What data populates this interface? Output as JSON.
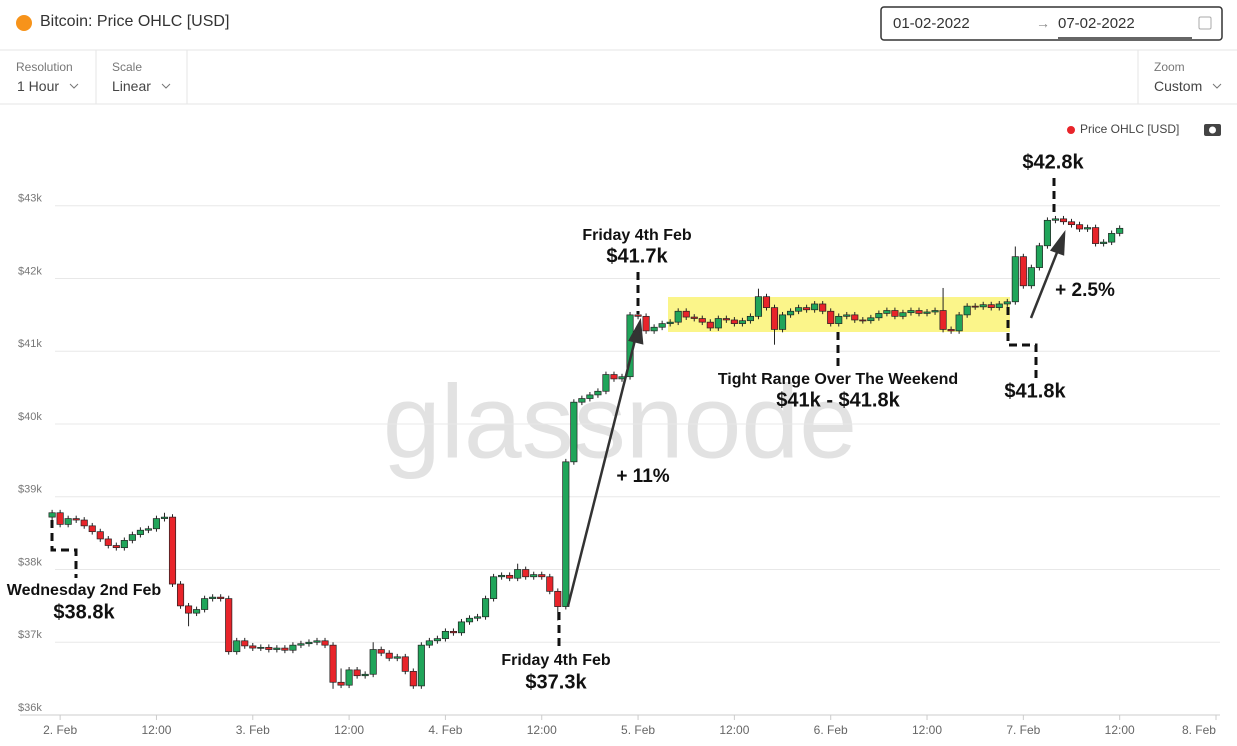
{
  "header": {
    "title": "Bitcoin: Price OHLC [USD]",
    "date_from": "01-02-2022",
    "date_separator": "→",
    "date_to": "07-02-2022"
  },
  "toolbar": {
    "resolution_label": "Resolution",
    "resolution_value": "1 Hour",
    "scale_label": "Scale",
    "scale_value": "Linear",
    "zoom_label": "Zoom",
    "zoom_value": "Custom"
  },
  "chart_data": {
    "type": "candlestick",
    "watermark": "glassnode",
    "up_color": "#20a55a",
    "down_color": "#e8242a",
    "grid": true,
    "xlim": [
      -4,
      145.5
    ],
    "xticks": [
      {
        "value": 1,
        "label": "2. Feb"
      },
      {
        "value": 13,
        "label": "12:00"
      },
      {
        "value": 25,
        "label": "3. Feb"
      },
      {
        "value": 37,
        "label": "12:00"
      },
      {
        "value": 49,
        "label": "4. Feb"
      },
      {
        "value": 61,
        "label": "12:00"
      },
      {
        "value": 73,
        "label": "5. Feb"
      },
      {
        "value": 85,
        "label": "12:00"
      },
      {
        "value": 97,
        "label": "6. Feb"
      },
      {
        "value": 109,
        "label": "12:00"
      },
      {
        "value": 121,
        "label": "7. Feb"
      },
      {
        "value": 133,
        "label": "12:00"
      },
      {
        "value": 145,
        "label": "8. Feb"
      }
    ],
    "ylim": [
      36000,
      44000
    ],
    "yticks": [
      {
        "value": 36000,
        "label": "$36k"
      },
      {
        "value": 37000,
        "label": "$37k"
      },
      {
        "value": 38000,
        "label": "$38k"
      },
      {
        "value": 39000,
        "label": "$39k"
      },
      {
        "value": 40000,
        "label": "$40k"
      },
      {
        "value": 41000,
        "label": "$41k"
      },
      {
        "value": 42000,
        "label": "$42k"
      },
      {
        "value": 43000,
        "label": "$43k"
      }
    ],
    "series": [
      {
        "name": "Price OHLC [USD]",
        "color": "#e8242a",
        "ohlc": [
          [
            38720,
            38820,
            38680,
            38780
          ],
          [
            38780,
            38820,
            38580,
            38620
          ],
          [
            38620,
            38740,
            38580,
            38700
          ],
          [
            38700,
            38740,
            38640,
            38680
          ],
          [
            38680,
            38720,
            38560,
            38600
          ],
          [
            38600,
            38640,
            38480,
            38520
          ],
          [
            38520,
            38560,
            38380,
            38420
          ],
          [
            38420,
            38460,
            38290,
            38330
          ],
          [
            38330,
            38370,
            38260,
            38300
          ],
          [
            38300,
            38440,
            38260,
            38400
          ],
          [
            38400,
            38520,
            38360,
            38480
          ],
          [
            38480,
            38580,
            38440,
            38540
          ],
          [
            38540,
            38600,
            38500,
            38560
          ],
          [
            38560,
            38740,
            38520,
            38700
          ],
          [
            38700,
            38780,
            38660,
            38720
          ],
          [
            38720,
            38760,
            37760,
            37800
          ],
          [
            37800,
            37840,
            37460,
            37500
          ],
          [
            37500,
            37540,
            37220,
            37400
          ],
          [
            37400,
            37490,
            37360,
            37450
          ],
          [
            37450,
            37640,
            37410,
            37600
          ],
          [
            37600,
            37660,
            37560,
            37620
          ],
          [
            37620,
            37660,
            37560,
            37600
          ],
          [
            37600,
            37640,
            36830,
            36870
          ],
          [
            36870,
            37060,
            36830,
            37020
          ],
          [
            37020,
            37060,
            36910,
            36950
          ],
          [
            36950,
            36990,
            36880,
            36920
          ],
          [
            36920,
            36970,
            36880,
            36930
          ],
          [
            36930,
            36970,
            36860,
            36900
          ],
          [
            36900,
            36960,
            36860,
            36920
          ],
          [
            36920,
            36960,
            36850,
            36890
          ],
          [
            36890,
            37000,
            36850,
            36960
          ],
          [
            36960,
            37020,
            36920,
            36980
          ],
          [
            36980,
            37040,
            36940,
            37000
          ],
          [
            37000,
            37060,
            36960,
            37020
          ],
          [
            37020,
            37060,
            36920,
            36960
          ],
          [
            36960,
            37000,
            36360,
            36450
          ],
          [
            36450,
            36640,
            36370,
            36410
          ],
          [
            36410,
            36660,
            36370,
            36620
          ],
          [
            36620,
            36660,
            36500,
            36540
          ],
          [
            36540,
            36600,
            36500,
            36560
          ],
          [
            36560,
            37000,
            36520,
            36900
          ],
          [
            36900,
            36940,
            36810,
            36850
          ],
          [
            36850,
            36890,
            36740,
            36780
          ],
          [
            36780,
            36840,
            36740,
            36800
          ],
          [
            36800,
            36840,
            36560,
            36600
          ],
          [
            36600,
            36640,
            36360,
            36400
          ],
          [
            36400,
            37000,
            36360,
            36960
          ],
          [
            36960,
            37060,
            36920,
            37020
          ],
          [
            37020,
            37090,
            36980,
            37050
          ],
          [
            37050,
            37190,
            37010,
            37150
          ],
          [
            37150,
            37190,
            37090,
            37130
          ],
          [
            37130,
            37320,
            37090,
            37280
          ],
          [
            37280,
            37370,
            37240,
            37330
          ],
          [
            37330,
            37390,
            37290,
            37350
          ],
          [
            37350,
            37640,
            37310,
            37600
          ],
          [
            37600,
            37940,
            37560,
            37900
          ],
          [
            37900,
            37960,
            37860,
            37920
          ],
          [
            37920,
            37960,
            37840,
            37880
          ],
          [
            37880,
            38080,
            37840,
            38000
          ],
          [
            38000,
            38040,
            37860,
            37900
          ],
          [
            37900,
            37970,
            37860,
            37930
          ],
          [
            37930,
            37970,
            37860,
            37900
          ],
          [
            37900,
            37940,
            37660,
            37700
          ],
          [
            37700,
            37740,
            37300,
            37490
          ],
          [
            37490,
            39520,
            37450,
            39480
          ],
          [
            39480,
            40340,
            39440,
            40300
          ],
          [
            40300,
            40390,
            40260,
            40350
          ],
          [
            40350,
            40440,
            40310,
            40400
          ],
          [
            40400,
            40490,
            40360,
            40450
          ],
          [
            40450,
            40720,
            40410,
            40680
          ],
          [
            40680,
            40720,
            40580,
            40620
          ],
          [
            40620,
            40690,
            40580,
            40650
          ],
          [
            40650,
            41540,
            40610,
            41500
          ],
          [
            41500,
            41540,
            41440,
            41480
          ],
          [
            41480,
            41520,
            41240,
            41280
          ],
          [
            41280,
            41370,
            41240,
            41330
          ],
          [
            41330,
            41420,
            41290,
            41380
          ],
          [
            41380,
            41440,
            41340,
            41400
          ],
          [
            41400,
            41590,
            41360,
            41550
          ],
          [
            41550,
            41590,
            41430,
            41470
          ],
          [
            41470,
            41510,
            41410,
            41450
          ],
          [
            41450,
            41490,
            41360,
            41400
          ],
          [
            41400,
            41440,
            41280,
            41320
          ],
          [
            41320,
            41490,
            41280,
            41450
          ],
          [
            41450,
            41490,
            41390,
            41430
          ],
          [
            41430,
            41470,
            41340,
            41380
          ],
          [
            41380,
            41460,
            41340,
            41420
          ],
          [
            41420,
            41520,
            41380,
            41480
          ],
          [
            41480,
            41860,
            41440,
            41750
          ],
          [
            41750,
            41790,
            41560,
            41600
          ],
          [
            41600,
            41640,
            41090,
            41300
          ],
          [
            41300,
            41540,
            41260,
            41500
          ],
          [
            41500,
            41590,
            41460,
            41550
          ],
          [
            41550,
            41640,
            41510,
            41600
          ],
          [
            41600,
            41640,
            41530,
            41570
          ],
          [
            41570,
            41690,
            41530,
            41650
          ],
          [
            41650,
            41690,
            41510,
            41550
          ],
          [
            41550,
            41590,
            41340,
            41380
          ],
          [
            41380,
            41520,
            41340,
            41480
          ],
          [
            41480,
            41540,
            41440,
            41500
          ],
          [
            41500,
            41540,
            41390,
            41430
          ],
          [
            41430,
            41470,
            41380,
            41420
          ],
          [
            41420,
            41500,
            41380,
            41460
          ],
          [
            41460,
            41560,
            41420,
            41520
          ],
          [
            41520,
            41600,
            41480,
            41560
          ],
          [
            41560,
            41600,
            41440,
            41480
          ],
          [
            41480,
            41570,
            41440,
            41530
          ],
          [
            41530,
            41600,
            41490,
            41560
          ],
          [
            41560,
            41600,
            41480,
            41520
          ],
          [
            41520,
            41580,
            41480,
            41540
          ],
          [
            41540,
            41600,
            41500,
            41560
          ],
          [
            41560,
            41870,
            41260,
            41300
          ],
          [
            41300,
            41340,
            41240,
            41280
          ],
          [
            41280,
            41540,
            41240,
            41500
          ],
          [
            41500,
            41660,
            41460,
            41620
          ],
          [
            41620,
            41660,
            41570,
            41610
          ],
          [
            41610,
            41680,
            41570,
            41640
          ],
          [
            41640,
            41680,
            41560,
            41600
          ],
          [
            41600,
            41690,
            41560,
            41650
          ],
          [
            41650,
            41720,
            41610,
            41680
          ],
          [
            41680,
            42440,
            41640,
            42300
          ],
          [
            42300,
            42340,
            41860,
            41900
          ],
          [
            41900,
            42190,
            41860,
            42150
          ],
          [
            42150,
            42490,
            42110,
            42450
          ],
          [
            42450,
            42840,
            42410,
            42800
          ],
          [
            42800,
            42860,
            42760,
            42820
          ],
          [
            42820,
            42860,
            42740,
            42780
          ],
          [
            42780,
            42820,
            42700,
            42740
          ],
          [
            42740,
            42780,
            42640,
            42680
          ],
          [
            42680,
            42740,
            42640,
            42700
          ],
          [
            42700,
            42740,
            42440,
            42480
          ],
          [
            42480,
            42540,
            42440,
            42500
          ],
          [
            42500,
            42660,
            42460,
            42620
          ],
          [
            42620,
            42730,
            42580,
            42690
          ]
        ]
      }
    ],
    "annotations": [
      "Wednesday 2nd Feb",
      "$38.8k",
      "Friday 4th Feb",
      "$37.3k",
      "Friday 4th Feb",
      "$41.7k",
      "Tight Range Over The Weekend",
      "$41k - $41.8k",
      "$41.8k",
      "$42.8k",
      "+ 11%",
      "+ 2.5%"
    ]
  }
}
